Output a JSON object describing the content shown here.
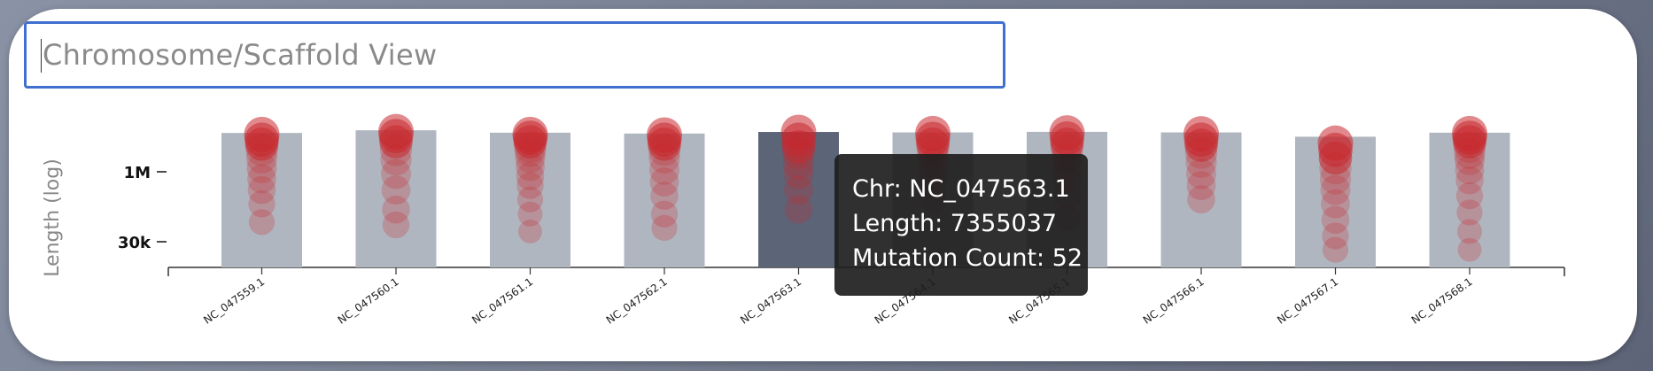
{
  "header": {
    "title_placeholder": "Chromosome/Scaffold View"
  },
  "chart_data": {
    "type": "bar",
    "ylabel": "Length (log)",
    "yscale": "log",
    "yticks": [
      {
        "value": 1000000,
        "label": "1M"
      },
      {
        "value": 30000,
        "label": "30k"
      }
    ],
    "categories": [
      "NC_047559.1",
      "NC_047560.1",
      "NC_047561.1",
      "NC_047562.1",
      "NC_047563.1",
      "NC_047564.1",
      "NC_047565.1",
      "NC_047566.1",
      "NC_047567.1",
      "NC_047568.1"
    ],
    "values": [
      7000000,
      8000000,
      7100000,
      6800000,
      7355037,
      7200000,
      7400000,
      7200000,
      5800000,
      7100000
    ],
    "highlighted_index": 4,
    "mutation_markers": [
      [
        6500000,
        5000000,
        4000000,
        3000000,
        2000000,
        1200000,
        700000,
        400000,
        200000,
        80000
      ],
      [
        7500000,
        6000000,
        4500000,
        3000000,
        1800000,
        900000,
        400000,
        150000,
        70000
      ],
      [
        6500000,
        5500000,
        4500000,
        3500000,
        2800000,
        2000000,
        1300000,
        800000,
        500000,
        250000,
        120000,
        50000
      ],
      [
        6300000,
        5000000,
        4000000,
        3000000,
        2000000,
        1100000,
        600000,
        300000,
        120000,
        60000
      ],
      [
        7200000,
        5000000,
        3500000,
        2500000,
        1500000,
        900000,
        400000,
        150000
      ],
      [
        6800000,
        5200000,
        4000000,
        3000000,
        2200000,
        1500000,
        900000,
        500000,
        250000
      ],
      [
        7000000,
        5300000,
        4000000,
        3000000,
        2000000,
        1200000,
        700000,
        300000,
        100000
      ],
      [
        6700000,
        5000000,
        3800000,
        2600000,
        1600000,
        900000,
        500000,
        250000
      ],
      [
        4200000,
        3000000,
        2000000,
        1200000,
        700000,
        400000,
        200000,
        90000,
        40000,
        20000
      ],
      [
        6800000,
        5500000,
        4500000,
        3500000,
        2500000,
        1800000,
        1100000,
        650000,
        300000,
        130000,
        50000,
        20000
      ]
    ],
    "bar_color": "#b0b6c0",
    "highlight_color": "#5c6478",
    "marker_color": "#c8282d"
  },
  "tooltip": {
    "chr_line": "Chr: NC_047563.1",
    "length_line": "Length: 7355037",
    "count_line": "Mutation Count: 52"
  }
}
